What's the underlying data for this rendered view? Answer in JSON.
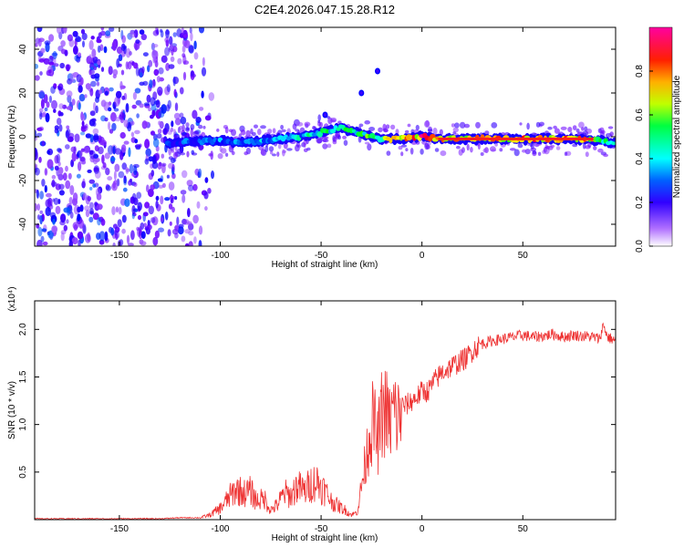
{
  "figure": {
    "title": "C2E4.2026.047.15.28.R12"
  },
  "colors": {
    "snr_line": "#ee3333",
    "axis": "#000000",
    "background": "#ffffff",
    "spectrogram_ridge": "#ff2020"
  },
  "chart_data": [
    {
      "type": "heatmap",
      "title": "C2E4.2026.047.15.28.R12",
      "xlabel": "Height of straight line (km)",
      "ylabel": "Frequency (Hz)",
      "xlim": [
        -192,
        96
      ],
      "ylim": [
        -50,
        50
      ],
      "x_ticks": [
        -150,
        -100,
        -50,
        0,
        50
      ],
      "x_tick_labels": [
        "-150",
        "-100",
        "-50",
        "0",
        "50"
      ],
      "y_ticks": [
        -40,
        -20,
        0,
        20,
        40
      ],
      "y_tick_labels": [
        "-40",
        "-20",
        "0",
        "20",
        "40"
      ],
      "colorbar": {
        "label": "Normalized spectral amplitude",
        "range": [
          0,
          1
        ],
        "ticks": [
          0,
          0.2,
          0.4,
          0.6,
          0.8
        ],
        "tick_labels": [
          "0.0",
          "0.2",
          "0.4",
          "0.6",
          "0.8"
        ],
        "colormap": [
          "#ffffff",
          "#6a00ff",
          "#0000ff",
          "#00ffff",
          "#00ff00",
          "#ffff00",
          "#ff8000",
          "#ff0000",
          "#ff00ff"
        ]
      },
      "noise_region_x": [
        -192,
        -110
      ],
      "signal_ridge": {
        "x": [
          -126,
          -110,
          -100,
          -90,
          -80,
          -70,
          -60,
          -50,
          -40,
          -30,
          -20,
          -10,
          0,
          10,
          20,
          30,
          40,
          50,
          60,
          70,
          80,
          90,
          96
        ],
        "y": [
          -3,
          -2,
          -2,
          -3,
          -2,
          -1,
          0,
          2,
          4,
          1,
          -1,
          -1,
          0,
          -1,
          -1,
          -1,
          -1,
          -1,
          -1,
          -1,
          -1,
          -2,
          -3
        ],
        "amplitude": [
          0.3,
          0.35,
          0.4,
          0.35,
          0.4,
          0.45,
          0.45,
          0.5,
          0.5,
          0.55,
          0.65,
          0.8,
          0.95,
          0.9,
          0.85,
          0.85,
          0.85,
          0.9,
          0.9,
          0.9,
          0.9,
          0.6,
          0.5
        ]
      },
      "side_features": [
        {
          "x": -30,
          "y": 20
        },
        {
          "x": -22,
          "y": 30
        },
        {
          "x": -48,
          "y": 10
        }
      ]
    },
    {
      "type": "line",
      "title": "",
      "xlabel": "Height of straight line (km)",
      "ylabel": "SNR (10 * v/v)",
      "y_scale_label": "(x10⁴)",
      "xlim": [
        -192,
        96
      ],
      "ylim": [
        0,
        2.3
      ],
      "x_ticks": [
        -150,
        -100,
        -50,
        0,
        50
      ],
      "x_tick_labels": [
        "-150",
        "-100",
        "-50",
        "0",
        "50"
      ],
      "y_ticks": [
        0.5,
        1.0,
        1.5,
        2.0
      ],
      "y_tick_labels": [
        "0.5",
        "1.0",
        "1.5",
        "2.0"
      ],
      "series": [
        {
          "name": "SNR",
          "x": [
            -192,
            -180,
            -170,
            -160,
            -150,
            -140,
            -130,
            -120,
            -110,
            -105,
            -100,
            -95,
            -92,
            -88,
            -85,
            -82,
            -78,
            -75,
            -72,
            -68,
            -65,
            -62,
            -58,
            -55,
            -52,
            -48,
            -45,
            -42,
            -38,
            -35,
            -32,
            -30,
            -28,
            -26,
            -24,
            -22,
            -20,
            -18,
            -16,
            -14,
            -12,
            -10,
            -8,
            -5,
            -2,
            0,
            3,
            6,
            10,
            14,
            18,
            22,
            26,
            30,
            35,
            40,
            45,
            50,
            55,
            60,
            65,
            70,
            75,
            80,
            85,
            88,
            90,
            92,
            96
          ],
          "y": [
            0.01,
            0.01,
            0.01,
            0.01,
            0.01,
            0.01,
            0.01,
            0.02,
            0.02,
            0.05,
            0.12,
            0.25,
            0.32,
            0.28,
            0.3,
            0.2,
            0.22,
            0.1,
            0.15,
            0.28,
            0.25,
            0.35,
            0.3,
            0.38,
            0.4,
            0.3,
            0.2,
            0.15,
            0.1,
            0.05,
            0.08,
            0.35,
            0.6,
            0.9,
            1.05,
            0.8,
            1.1,
            1.15,
            1.0,
            1.15,
            1.05,
            1.2,
            1.2,
            1.25,
            1.3,
            1.35,
            1.35,
            1.45,
            1.55,
            1.6,
            1.65,
            1.7,
            1.8,
            1.85,
            1.88,
            1.9,
            1.92,
            1.94,
            1.92,
            1.93,
            1.95,
            1.92,
            1.94,
            1.93,
            1.92,
            1.9,
            2.05,
            1.92,
            1.88
          ]
        }
      ]
    }
  ]
}
